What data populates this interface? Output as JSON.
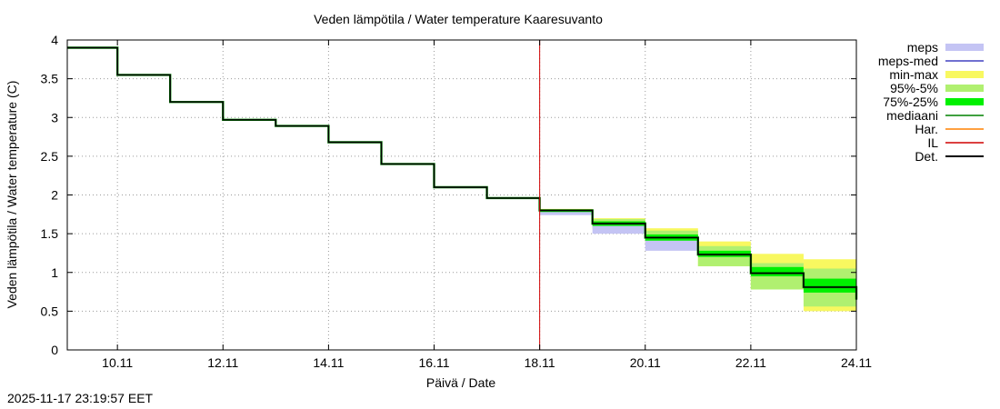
{
  "chart_data": {
    "type": "line",
    "title": "Veden lämpötila / Water temperature Kaaresuvanto",
    "xlabel": "Päivä / Date",
    "ylabel": "Veden lämpötila / Water temperature (C)",
    "ylim": [
      0,
      4
    ],
    "yticks": [
      0,
      0.5,
      1,
      1.5,
      2,
      2.5,
      3,
      3.5,
      4
    ],
    "xlim": [
      9.05,
      24.0
    ],
    "xticks": [
      {
        "value": 10,
        "label": "10.11"
      },
      {
        "value": 12,
        "label": "12.11"
      },
      {
        "value": 14,
        "label": "14.11"
      },
      {
        "value": 16,
        "label": "16.11"
      },
      {
        "value": 18,
        "label": "18.11"
      },
      {
        "value": 20,
        "label": "20.11"
      },
      {
        "value": 22,
        "label": "22.11"
      },
      {
        "value": 24,
        "label": "24.11"
      }
    ],
    "grid": true,
    "forecast_start": 18.0,
    "legend_position": "right",
    "legend": [
      {
        "key": "meps",
        "label": "meps",
        "color": "#c4c4f4",
        "style": "band"
      },
      {
        "key": "meps_med",
        "label": "meps-med",
        "color": "#4040c0",
        "style": "line"
      },
      {
        "key": "minmax",
        "label": "min-max",
        "color": "#f8f860",
        "style": "band"
      },
      {
        "key": "p95_5",
        "label": "95%-5%",
        "color": "#b0f070",
        "style": "band"
      },
      {
        "key": "p75_25",
        "label": "75%-25%",
        "color": "#00f000",
        "style": "band"
      },
      {
        "key": "median",
        "label": "mediaani",
        "color": "#008000",
        "style": "line"
      },
      {
        "key": "har",
        "label": "Har.",
        "color": "#ff8000",
        "style": "line"
      },
      {
        "key": "il",
        "label": "IL",
        "color": "#d00000",
        "style": "line"
      },
      {
        "key": "det",
        "label": "Det.",
        "color": "#000000",
        "style": "line"
      }
    ],
    "det_steps": [
      {
        "x0": 9.05,
        "x1": 10.0,
        "y": 3.9
      },
      {
        "x0": 10.0,
        "x1": 11.0,
        "y": 3.55
      },
      {
        "x0": 11.0,
        "x1": 12.0,
        "y": 3.2
      },
      {
        "x0": 12.0,
        "x1": 13.0,
        "y": 2.97
      },
      {
        "x0": 13.0,
        "x1": 14.0,
        "y": 2.89
      },
      {
        "x0": 14.0,
        "x1": 15.0,
        "y": 2.68
      },
      {
        "x0": 15.0,
        "x1": 16.0,
        "y": 2.4
      },
      {
        "x0": 16.0,
        "x1": 17.0,
        "y": 2.1
      },
      {
        "x0": 17.0,
        "x1": 18.0,
        "y": 1.96
      },
      {
        "x0": 18.0,
        "x1": 19.0,
        "y": 1.8
      },
      {
        "x0": 19.0,
        "x1": 20.0,
        "y": 1.63
      },
      {
        "x0": 20.0,
        "x1": 21.0,
        "y": 1.45
      },
      {
        "x0": 21.0,
        "x1": 22.0,
        "y": 1.23
      },
      {
        "x0": 22.0,
        "x1": 23.0,
        "y": 0.99
      },
      {
        "x0": 23.0,
        "x1": 24.0,
        "y": 0.81
      }
    ],
    "det_end": {
      "x": 24.0,
      "y": 0.65
    },
    "bands": [
      {
        "x0": 18.0,
        "x1": 19.0,
        "meps": [
          1.74,
          1.8
        ],
        "minmax": [
          1.77,
          1.82
        ],
        "p95_5": [
          1.77,
          1.81
        ],
        "p75_25": [
          1.78,
          1.8
        ]
      },
      {
        "x0": 19.0,
        "x1": 20.0,
        "meps": [
          1.5,
          1.62
        ],
        "minmax": [
          1.56,
          1.7
        ],
        "p95_5": [
          1.57,
          1.69
        ],
        "p75_25": [
          1.6,
          1.66
        ]
      },
      {
        "x0": 20.0,
        "x1": 21.0,
        "meps": [
          1.28,
          1.42
        ],
        "minmax": [
          1.38,
          1.57
        ],
        "p95_5": [
          1.37,
          1.54
        ],
        "p75_25": [
          1.41,
          1.49
        ]
      },
      {
        "x0": 21.0,
        "x1": 22.0,
        "meps": [
          1.22,
          1.25
        ],
        "minmax": [
          1.08,
          1.4
        ],
        "p95_5": [
          1.08,
          1.34
        ],
        "p75_25": [
          1.2,
          1.28
        ]
      },
      {
        "x0": 22.0,
        "x1": 23.0,
        "meps": [
          0.98,
          1.0
        ],
        "minmax": [
          0.78,
          1.24
        ],
        "p95_5": [
          0.78,
          1.12
        ],
        "p75_25": [
          0.95,
          1.07
        ]
      },
      {
        "x0": 23.0,
        "x1": 24.0,
        "meps": [
          0.8,
          0.82
        ],
        "minmax": [
          0.5,
          1.17
        ],
        "p95_5": [
          0.56,
          1.05
        ],
        "p75_25": [
          0.74,
          0.92
        ]
      }
    ]
  },
  "timestamp": "2025-11-17 23:19:57 EET"
}
